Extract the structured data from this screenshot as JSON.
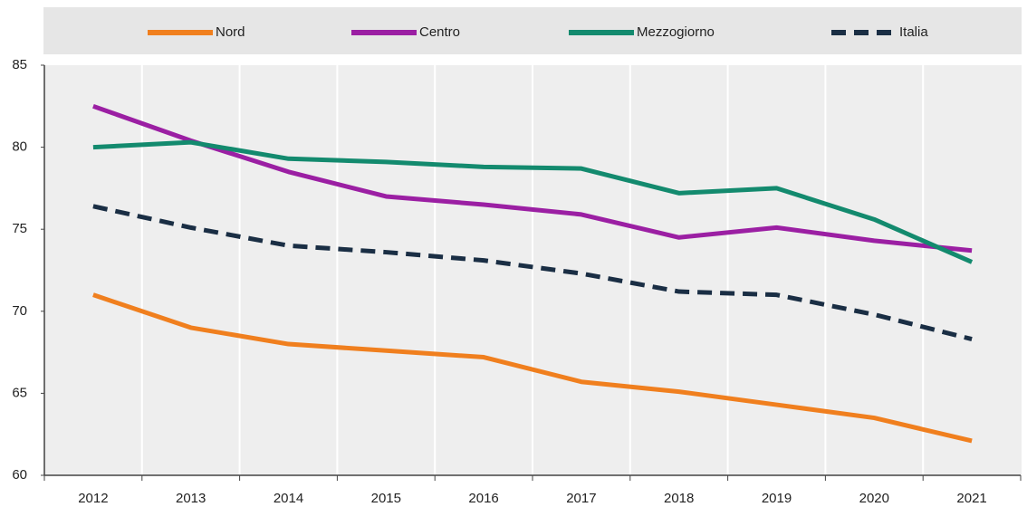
{
  "chart_data": {
    "type": "line",
    "categories": [
      "2012",
      "2013",
      "2014",
      "2015",
      "2016",
      "2017",
      "2018",
      "2019",
      "2020",
      "2021"
    ],
    "series": [
      {
        "name": "Nord",
        "color": "#f07f1e",
        "values": [
          71.0,
          69.0,
          68.0,
          67.6,
          67.2,
          65.7,
          65.1,
          64.3,
          63.5,
          62.1
        ]
      },
      {
        "name": "Centro",
        "color": "#9b1fa3",
        "values": [
          82.5,
          80.4,
          78.5,
          77.0,
          76.5,
          75.9,
          74.5,
          75.1,
          74.3,
          73.7
        ]
      },
      {
        "name": "Mezzogiorno",
        "color": "#138a6e",
        "values": [
          80.0,
          80.3,
          79.3,
          79.1,
          78.8,
          78.7,
          77.2,
          77.5,
          75.6,
          73.0
        ]
      },
      {
        "name": "Italia",
        "color": "#1a2e44",
        "dashed": true,
        "values": [
          76.4,
          75.1,
          74.0,
          73.6,
          73.1,
          72.3,
          71.2,
          71.0,
          69.8,
          68.3
        ]
      }
    ],
    "ylim": [
      60,
      85
    ],
    "yticks": [
      60,
      65,
      70,
      75,
      80,
      85
    ],
    "grid": true,
    "legend": "top"
  }
}
